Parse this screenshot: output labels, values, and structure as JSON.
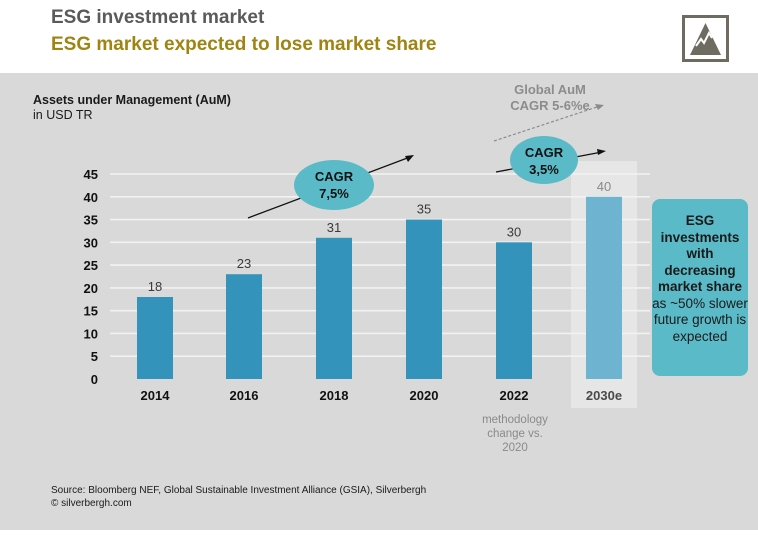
{
  "header": {
    "title": "ESG investment market",
    "subtitle": "ESG market expected to lose market share",
    "logo_icon": "mountain-logo-icon"
  },
  "colors": {
    "title_gray": "#5a5a5a",
    "subtitle_gold": "#a08412",
    "bar_actual": "#3493bb",
    "bar_estimate": "#6eb3cf",
    "highlight_teal": "#5bbac7",
    "panel_bg": "#d9d9d9",
    "grid": "#f2f2f2"
  },
  "chart_data": {
    "type": "bar",
    "title": "Assets under Management (AuM)",
    "ylabel": "in USD TR",
    "xlabel": "",
    "categories": [
      "2014",
      "2016",
      "2018",
      "2020",
      "2022",
      "2030e"
    ],
    "values": [
      18,
      23,
      31,
      35,
      30,
      40
    ],
    "estimate_flags": [
      false,
      false,
      false,
      false,
      false,
      true
    ],
    "ylim": [
      0,
      45
    ],
    "yticks": [
      0,
      5,
      10,
      15,
      20,
      25,
      30,
      35,
      40,
      45
    ],
    "ytick_labels": [
      "0",
      "5",
      "10",
      "15",
      "20",
      "25",
      "30",
      "35",
      "40",
      "45"
    ],
    "grid": true,
    "legend": "none",
    "annotations": {
      "cagr_historic": {
        "line1": "CAGR",
        "line2": "7,5%"
      },
      "cagr_forecast": {
        "line1": "CAGR",
        "line2": "3,5%"
      },
      "global_aum": {
        "line1": "Global AuM",
        "line2": "CAGR 5-6%e"
      },
      "methodology_note": [
        "methodology",
        "change vs.",
        "2020"
      ]
    }
  },
  "side_note": {
    "bold_part": "ESG investments with decreasing market share",
    "regular_part": " as ~50% slower future growth is expected"
  },
  "footer": {
    "source": "Source: Bloomberg NEF, Global Sustainable Investment Alliance (GSIA), Silverbergh",
    "copyright": "© silverbergh.com"
  }
}
